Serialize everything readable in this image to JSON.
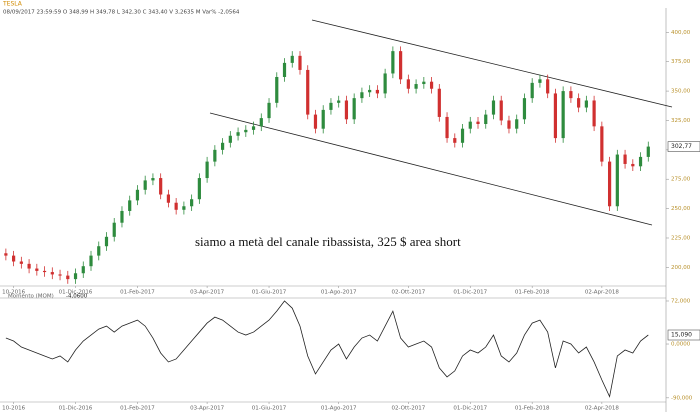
{
  "header": {
    "symbol": "TESLA",
    "info": "08/09/2017   23:59:59   O 348,99   H 349,78   L 342,30   C 343,40   V 3,2635 M   Var% -2,0564"
  },
  "annotation": "siamo a metà del canale ribassista, 325 $ area short",
  "chart_data": [
    {
      "type": "candlestick",
      "title": "TESLA",
      "categories": [
        null,
        "10-2016",
        null,
        null,
        null,
        null,
        null,
        null,
        null,
        "01-Dic-2016",
        null,
        null,
        null,
        null,
        null,
        null,
        null,
        "01-Feb-2017",
        null,
        null,
        null,
        null,
        null,
        null,
        null,
        null,
        "03-Apr-2017",
        null,
        null,
        null,
        null,
        null,
        null,
        null,
        "01-Giu-2017",
        null,
        null,
        null,
        null,
        null,
        null,
        null,
        null,
        "01-Ago-2017",
        null,
        null,
        null,
        null,
        null,
        null,
        null,
        null,
        "02-Ott-2017",
        null,
        null,
        null,
        null,
        null,
        null,
        null,
        "01-Dic-2017",
        null,
        null,
        null,
        null,
        null,
        null,
        null,
        "01-Feb-2018",
        null,
        null,
        null,
        null,
        null,
        null,
        null,
        null,
        "02-Apr-2018",
        null,
        null,
        null,
        null,
        null,
        null
      ],
      "open": [
        212,
        210,
        205,
        203,
        199,
        197,
        196,
        194,
        193,
        190,
        195,
        201,
        210,
        218,
        226,
        238,
        248,
        257,
        266,
        274,
        276,
        262,
        255,
        249,
        252,
        258,
        276,
        290,
        300,
        306,
        312,
        315,
        317,
        320,
        327,
        340,
        362,
        374,
        380,
        368,
        330,
        318,
        334,
        340,
        342,
        326,
        344,
        349,
        351,
        348,
        365,
        384,
        360,
        352,
        356,
        358,
        352,
        328,
        310,
        306,
        318,
        324,
        322,
        330,
        342,
        325,
        318,
        326,
        344,
        357,
        360,
        348,
        310,
        350,
        344,
        336,
        342,
        320,
        290,
        252,
        296,
        288,
        286,
        294
      ],
      "high": [
        216,
        214,
        209,
        207,
        203,
        201,
        200,
        198,
        197,
        199,
        205,
        214,
        222,
        230,
        242,
        252,
        261,
        270,
        278,
        280,
        280,
        266,
        259,
        256,
        262,
        280,
        294,
        304,
        310,
        316,
        319,
        321,
        324,
        331,
        344,
        366,
        378,
        384,
        384,
        372,
        334,
        338,
        344,
        346,
        346,
        348,
        353,
        355,
        355,
        369,
        388,
        388,
        364,
        360,
        362,
        362,
        356,
        332,
        314,
        322,
        328,
        328,
        334,
        346,
        346,
        329,
        330,
        348,
        361,
        364,
        364,
        352,
        354,
        354,
        348,
        346,
        346,
        324,
        294,
        300,
        300,
        292,
        298,
        307
      ],
      "low": [
        206,
        201,
        199,
        195,
        193,
        192,
        190,
        189,
        186,
        186,
        191,
        197,
        206,
        214,
        222,
        234,
        244,
        253,
        262,
        270,
        258,
        251,
        245,
        245,
        248,
        254,
        272,
        286,
        296,
        302,
        308,
        311,
        313,
        316,
        323,
        336,
        358,
        370,
        364,
        326,
        314,
        314,
        330,
        336,
        322,
        322,
        340,
        345,
        344,
        344,
        361,
        356,
        348,
        348,
        352,
        348,
        324,
        306,
        302,
        302,
        314,
        318,
        318,
        326,
        321,
        314,
        314,
        322,
        340,
        353,
        344,
        306,
        306,
        340,
        332,
        332,
        316,
        286,
        248,
        248,
        284,
        282,
        282,
        290
      ],
      "close": [
        210,
        205,
        203,
        199,
        197,
        196,
        194,
        193,
        190,
        195,
        201,
        210,
        218,
        226,
        238,
        248,
        257,
        266,
        274,
        276,
        262,
        255,
        249,
        252,
        258,
        276,
        290,
        300,
        306,
        312,
        315,
        317,
        320,
        327,
        340,
        362,
        374,
        380,
        368,
        330,
        318,
        334,
        340,
        342,
        326,
        344,
        349,
        351,
        348,
        365,
        384,
        360,
        352,
        356,
        358,
        352,
        328,
        310,
        306,
        318,
        324,
        322,
        330,
        342,
        325,
        318,
        326,
        344,
        357,
        360,
        348,
        310,
        350,
        344,
        336,
        342,
        320,
        290,
        252,
        296,
        288,
        286,
        294,
        302.77
      ],
      "last_label": "302,77",
      "up_color": "#2e8b3e",
      "down_color": "#d03030",
      "ylim": [
        185,
        419
      ],
      "yticks": [
        {
          "value": 200,
          "label": "200,00"
        },
        {
          "value": 225,
          "label": "225,00"
        },
        {
          "value": 250,
          "label": "250,00"
        },
        {
          "value": 275,
          "label": "275,00"
        },
        {
          "value": 300,
          "label": "300,00"
        },
        {
          "value": 325,
          "label": "325,00"
        },
        {
          "value": 350,
          "label": "350,00"
        },
        {
          "value": 375,
          "label": "375,00"
        },
        {
          "value": 400,
          "label": "400,00"
        }
      ]
    },
    {
      "type": "line",
      "title": "Momento (MOM)",
      "header_value": "-4,0600",
      "values": [
        10,
        5,
        -5,
        -10,
        -15,
        -20,
        -25,
        -20,
        -30,
        -10,
        5,
        15,
        25,
        30,
        20,
        30,
        35,
        40,
        30,
        10,
        -15,
        -30,
        -25,
        -10,
        5,
        20,
        35,
        45,
        40,
        30,
        20,
        15,
        20,
        30,
        40,
        55,
        72,
        60,
        30,
        -20,
        -50,
        -30,
        -10,
        0,
        -25,
        -5,
        10,
        15,
        5,
        30,
        55,
        10,
        -5,
        0,
        5,
        -5,
        -40,
        -55,
        -45,
        -20,
        -10,
        -15,
        -5,
        15,
        -20,
        -30,
        -15,
        15,
        35,
        40,
        20,
        -40,
        5,
        0,
        -15,
        -5,
        -30,
        -60,
        -88,
        -20,
        -10,
        -15,
        5,
        15.09
      ],
      "last_label": "15,090",
      "color": "#222222",
      "ylim": [
        -97,
        77
      ],
      "yticks": [
        {
          "value": 72,
          "label": "72,000"
        },
        {
          "value": 0,
          "label": "0,0000"
        },
        {
          "value": -90,
          "label": "-90,000"
        }
      ]
    }
  ]
}
